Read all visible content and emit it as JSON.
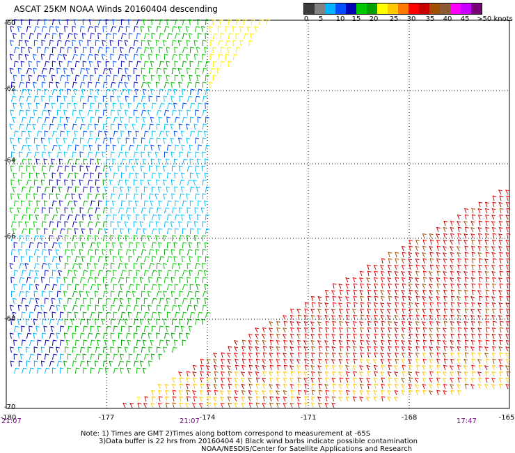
{
  "title": "ASCAT 25KM NOAA Winds 20160404 descending",
  "legend": {
    "unit_label": ">50 knots",
    "ticks": [
      "0",
      "5",
      "10",
      "15",
      "20",
      "25",
      "30",
      "35",
      "40",
      "45"
    ],
    "colors": [
      "#3c3c3c",
      "#828282",
      "#00b4ff",
      "#0050ff",
      "#0000b4",
      "#00c800",
      "#00a000",
      "#ffff00",
      "#ffc800",
      "#ff7800",
      "#ff0000",
      "#c80000",
      "#a05000",
      "#8c5a32",
      "#ff00ff",
      "#c800ff",
      "#780078"
    ]
  },
  "axes": {
    "x_ticks": [
      "-180",
      "-177",
      "-174",
      "-171",
      "-168",
      "-165"
    ],
    "y_ticks": [
      "-60",
      "-62",
      "-64",
      "-66",
      "-68",
      "-70"
    ]
  },
  "pass_times": [
    "21:07",
    "21:07",
    "17:47"
  ],
  "notes": {
    "line1": "Note: 1) Times are GMT 2)Times along bottom correspond to measurement at -65S",
    "line2": "3)Data buffer is 22 hrs from 20160404 4) Black wind barbs indicate possible contamination",
    "line3": "NOAA/NESDIS/Center for Satellite Applications and Research"
  }
}
